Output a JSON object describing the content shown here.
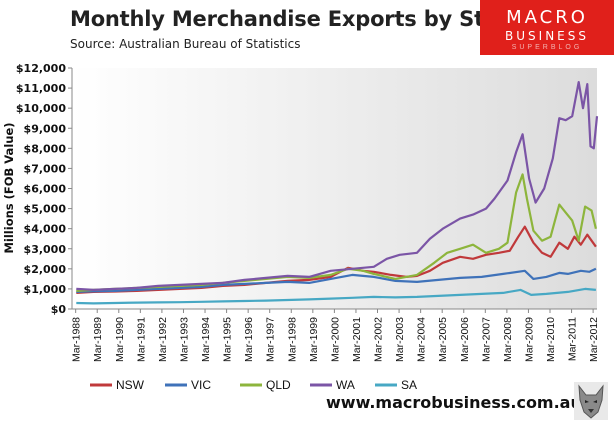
{
  "header": {
    "title": "Monthly Merchandise Exports by State",
    "subtitle": "Source:  Australian Bureau of Statistics"
  },
  "logo": {
    "line1": "MACRO",
    "line2": "BUSINESS",
    "line3": "SUPERBLOG"
  },
  "footer": {
    "url": "www.macrobusiness.com.au"
  },
  "icons": {
    "footer_logo": "wolf-head-icon"
  },
  "chart_data": {
    "type": "line",
    "ylabel": "Millions (FOB Value)",
    "xlabel": "",
    "ylim": [
      0,
      12000
    ],
    "xlim": [
      1988.0,
      2012.35
    ],
    "grid": false,
    "legend_position": "bottom",
    "y_ticks": [
      "$0",
      "$1,000",
      "$2,000",
      "$3,000",
      "$4,000",
      "$5,000",
      "$6,000",
      "$7,000",
      "$8,000",
      "$9,000",
      "$10,000",
      "$11,000",
      "$12,000"
    ],
    "x_ticks": [
      "Mar-1988",
      "Mar-1989",
      "Mar-1990",
      "Mar-1991",
      "Mar-1992",
      "Mar-1993",
      "Mar-1994",
      "Mar-1995",
      "Mar-1996",
      "Mar-1997",
      "Mar-1998",
      "Mar-1999",
      "Mar-2000",
      "Mar-2001",
      "Mar-2002",
      "Mar-2003",
      "Mar-2004",
      "Mar-2005",
      "Mar-2006",
      "Mar-2007",
      "Mar-2008",
      "Mar-2009",
      "Mar-2010",
      "Mar-2011",
      "Mar-2012"
    ],
    "series": [
      {
        "name": "NSW",
        "color": "#c0393b",
        "points": [
          [
            1988.2,
            800
          ],
          [
            1989,
            850
          ],
          [
            1990,
            870
          ],
          [
            1991,
            900
          ],
          [
            1992,
            950
          ],
          [
            1993,
            1000
          ],
          [
            1994,
            1050
          ],
          [
            1995,
            1150
          ],
          [
            1996,
            1200
          ],
          [
            1997,
            1300
          ],
          [
            1998,
            1400
          ],
          [
            1999,
            1450
          ],
          [
            2000,
            1600
          ],
          [
            2000.8,
            2050
          ],
          [
            2001.5,
            1900
          ],
          [
            2002,
            1850
          ],
          [
            2002.8,
            1700
          ],
          [
            2003.5,
            1600
          ],
          [
            2004,
            1650
          ],
          [
            2004.6,
            1900
          ],
          [
            2005.2,
            2300
          ],
          [
            2006,
            2600
          ],
          [
            2006.6,
            2500
          ],
          [
            2007.2,
            2700
          ],
          [
            2007.8,
            2800
          ],
          [
            2008.3,
            2900
          ],
          [
            2008.7,
            3600
          ],
          [
            2009,
            4100
          ],
          [
            2009.4,
            3300
          ],
          [
            2009.8,
            2800
          ],
          [
            2010.2,
            2600
          ],
          [
            2010.6,
            3300
          ],
          [
            2011,
            3000
          ],
          [
            2011.3,
            3600
          ],
          [
            2011.6,
            3200
          ],
          [
            2011.9,
            3700
          ],
          [
            2012.1,
            3400
          ],
          [
            2012.3,
            3100
          ]
        ]
      },
      {
        "name": "VIC",
        "color": "#3f72b9",
        "points": [
          [
            1988.2,
            850
          ],
          [
            1989,
            880
          ],
          [
            1990,
            900
          ],
          [
            1991,
            950
          ],
          [
            1992,
            1000
          ],
          [
            1993,
            1050
          ],
          [
            1994,
            1100
          ],
          [
            1995,
            1200
          ],
          [
            1996,
            1250
          ],
          [
            1997,
            1300
          ],
          [
            1998,
            1350
          ],
          [
            1999,
            1300
          ],
          [
            2000,
            1500
          ],
          [
            2001,
            1700
          ],
          [
            2002,
            1600
          ],
          [
            2003,
            1400
          ],
          [
            2004,
            1350
          ],
          [
            2005,
            1450
          ],
          [
            2006,
            1550
          ],
          [
            2007,
            1600
          ],
          [
            2008,
            1750
          ],
          [
            2009,
            1900
          ],
          [
            2009.4,
            1500
          ],
          [
            2010,
            1600
          ],
          [
            2010.6,
            1800
          ],
          [
            2011,
            1750
          ],
          [
            2011.6,
            1900
          ],
          [
            2012,
            1850
          ],
          [
            2012.3,
            2000
          ]
        ]
      },
      {
        "name": "QLD",
        "color": "#8db53c",
        "points": [
          [
            1988.2,
            900
          ],
          [
            1989,
            950
          ],
          [
            1990,
            1000
          ],
          [
            1991,
            1050
          ],
          [
            1992,
            1100
          ],
          [
            1993,
            1150
          ],
          [
            1994,
            1200
          ],
          [
            1995,
            1300
          ],
          [
            1996,
            1400
          ],
          [
            1997,
            1500
          ],
          [
            1998,
            1600
          ],
          [
            1999,
            1550
          ],
          [
            2000,
            1700
          ],
          [
            2000.8,
            2000
          ],
          [
            2001.5,
            1900
          ],
          [
            2002,
            1750
          ],
          [
            2003,
            1500
          ],
          [
            2004,
            1700
          ],
          [
            2004.8,
            2300
          ],
          [
            2005.4,
            2800
          ],
          [
            2006,
            3000
          ],
          [
            2006.6,
            3200
          ],
          [
            2007.2,
            2800
          ],
          [
            2007.8,
            3000
          ],
          [
            2008.2,
            3300
          ],
          [
            2008.6,
            5800
          ],
          [
            2008.9,
            6700
          ],
          [
            2009.1,
            5500
          ],
          [
            2009.4,
            3900
          ],
          [
            2009.8,
            3400
          ],
          [
            2010.2,
            3600
          ],
          [
            2010.6,
            5200
          ],
          [
            2010.9,
            4800
          ],
          [
            2011.2,
            4400
          ],
          [
            2011.5,
            3400
          ],
          [
            2011.8,
            5100
          ],
          [
            2012.1,
            4900
          ],
          [
            2012.3,
            4000
          ]
        ]
      },
      {
        "name": "WA",
        "color": "#7b55a6",
        "points": [
          [
            1988.2,
            1000
          ],
          [
            1989,
            950
          ],
          [
            1990,
            1000
          ],
          [
            1991,
            1050
          ],
          [
            1992,
            1150
          ],
          [
            1993,
            1200
          ],
          [
            1994,
            1250
          ],
          [
            1995,
            1300
          ],
          [
            1996,
            1450
          ],
          [
            1997,
            1550
          ],
          [
            1998,
            1650
          ],
          [
            1999,
            1600
          ],
          [
            2000,
            1900
          ],
          [
            2001,
            2000
          ],
          [
            2002,
            2100
          ],
          [
            2002.6,
            2500
          ],
          [
            2003.2,
            2700
          ],
          [
            2004,
            2800
          ],
          [
            2004.6,
            3500
          ],
          [
            2005.2,
            4000
          ],
          [
            2006,
            4500
          ],
          [
            2006.6,
            4700
          ],
          [
            2007.2,
            5000
          ],
          [
            2007.6,
            5500
          ],
          [
            2008.2,
            6400
          ],
          [
            2008.6,
            7800
          ],
          [
            2008.9,
            8700
          ],
          [
            2009.2,
            6500
          ],
          [
            2009.5,
            5300
          ],
          [
            2009.9,
            6000
          ],
          [
            2010.3,
            7500
          ],
          [
            2010.6,
            9500
          ],
          [
            2010.9,
            9400
          ],
          [
            2011.2,
            9600
          ],
          [
            2011.5,
            11300
          ],
          [
            2011.7,
            10000
          ],
          [
            2011.9,
            11200
          ],
          [
            2012.05,
            8100
          ],
          [
            2012.2,
            8000
          ],
          [
            2012.35,
            9600
          ]
        ]
      },
      {
        "name": "SA",
        "color": "#47a8c4",
        "points": [
          [
            1988.2,
            300
          ],
          [
            1989,
            280
          ],
          [
            1990,
            300
          ],
          [
            1991,
            320
          ],
          [
            1992,
            330
          ],
          [
            1993,
            340
          ],
          [
            1994,
            360
          ],
          [
            1995,
            380
          ],
          [
            1996,
            400
          ],
          [
            1997,
            420
          ],
          [
            1998,
            450
          ],
          [
            1999,
            480
          ],
          [
            2000,
            520
          ],
          [
            2001,
            560
          ],
          [
            2002,
            600
          ],
          [
            2003,
            580
          ],
          [
            2004,
            600
          ],
          [
            2005,
            650
          ],
          [
            2006,
            700
          ],
          [
            2007,
            750
          ],
          [
            2008,
            800
          ],
          [
            2008.8,
            950
          ],
          [
            2009.3,
            700
          ],
          [
            2010,
            750
          ],
          [
            2011,
            850
          ],
          [
            2011.8,
            1000
          ],
          [
            2012.3,
            950
          ]
        ]
      }
    ]
  }
}
